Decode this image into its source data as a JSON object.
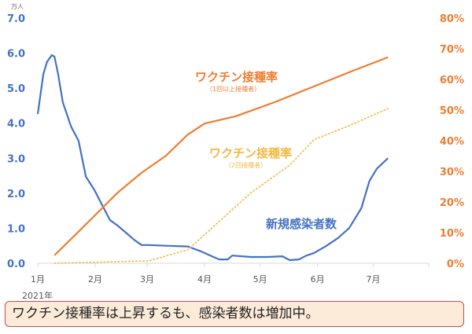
{
  "chart_data": {
    "type": "line",
    "left_unit": "万人",
    "left_ticks": [
      "0.0",
      "1.0",
      "2.0",
      "3.0",
      "4.0",
      "5.0",
      "6.0",
      "7.0"
    ],
    "left_ylim": [
      0,
      7
    ],
    "right_ticks": [
      "0%",
      "10%",
      "20%",
      "30%",
      "40%",
      "50%",
      "60%",
      "70%",
      "80%"
    ],
    "right_ylim": [
      0,
      80
    ],
    "x_unit": "days since 2021-01-01",
    "xlim": [
      0,
      211
    ],
    "x_ticks": [
      {
        "day": 0,
        "label": "1月"
      },
      {
        "day": 31,
        "label": "2月"
      },
      {
        "day": 59,
        "label": "3月"
      },
      {
        "day": 90,
        "label": "4月"
      },
      {
        "day": 120,
        "label": "5月"
      },
      {
        "day": 151,
        "label": "6月"
      },
      {
        "day": 181,
        "label": "7月"
      }
    ],
    "x_sublabel": "2021年",
    "series": [
      {
        "name": "新規感染者数",
        "axis": "left",
        "color": "#4472c4",
        "style": "solid",
        "x": [
          0,
          3,
          5,
          7.6,
          9,
          11,
          13.5,
          18,
          22,
          26,
          30.5,
          35,
          39,
          43,
          47,
          52,
          56,
          60,
          69,
          81,
          88,
          94,
          98,
          102.5,
          105,
          115,
          124,
          132,
          136,
          141,
          145,
          149,
          155.5,
          162,
          168,
          174.6,
          179,
          183,
          189
        ],
        "y": [
          4.26,
          5.4,
          5.75,
          5.94,
          5.9,
          5.4,
          4.6,
          3.9,
          3.5,
          2.47,
          2.1,
          1.64,
          1.23,
          1.08,
          0.9,
          0.67,
          0.52,
          0.52,
          0.5,
          0.48,
          0.34,
          0.2,
          0.11,
          0.11,
          0.22,
          0.18,
          0.18,
          0.2,
          0.09,
          0.11,
          0.22,
          0.29,
          0.49,
          0.72,
          1.0,
          1.57,
          2.35,
          2.7,
          3.0
        ]
      },
      {
        "name": "ワクチン接種率",
        "sub": "（1回以上接種者）",
        "axis": "right",
        "color": "#ed7d31",
        "style": "solid",
        "x": [
          9,
          22,
          30.5,
          43,
          56,
          69,
          81,
          90,
          107,
          128,
          149,
          170,
          189
        ],
        "y": [
          2.6,
          10.3,
          15.4,
          23,
          29.5,
          35,
          42,
          45.6,
          48,
          52.6,
          57.7,
          62.8,
          67.2
        ]
      },
      {
        "name": "ワクチン接種率",
        "sub": "（2回接種者）",
        "axis": "right",
        "color": "#f4b942",
        "style": "dotted",
        "x": [
          9,
          60,
          81,
          94,
          115,
          136,
          149,
          170,
          189
        ],
        "y": [
          0,
          0.8,
          4.4,
          11.5,
          23,
          32,
          40.3,
          45.4,
          50.5
        ]
      }
    ],
    "colors": {
      "left_axis": "#4472c4",
      "right_axis": "#ed7d31"
    }
  },
  "caption": "ワクチン接種率は上昇するも、感染者数は増加中。"
}
